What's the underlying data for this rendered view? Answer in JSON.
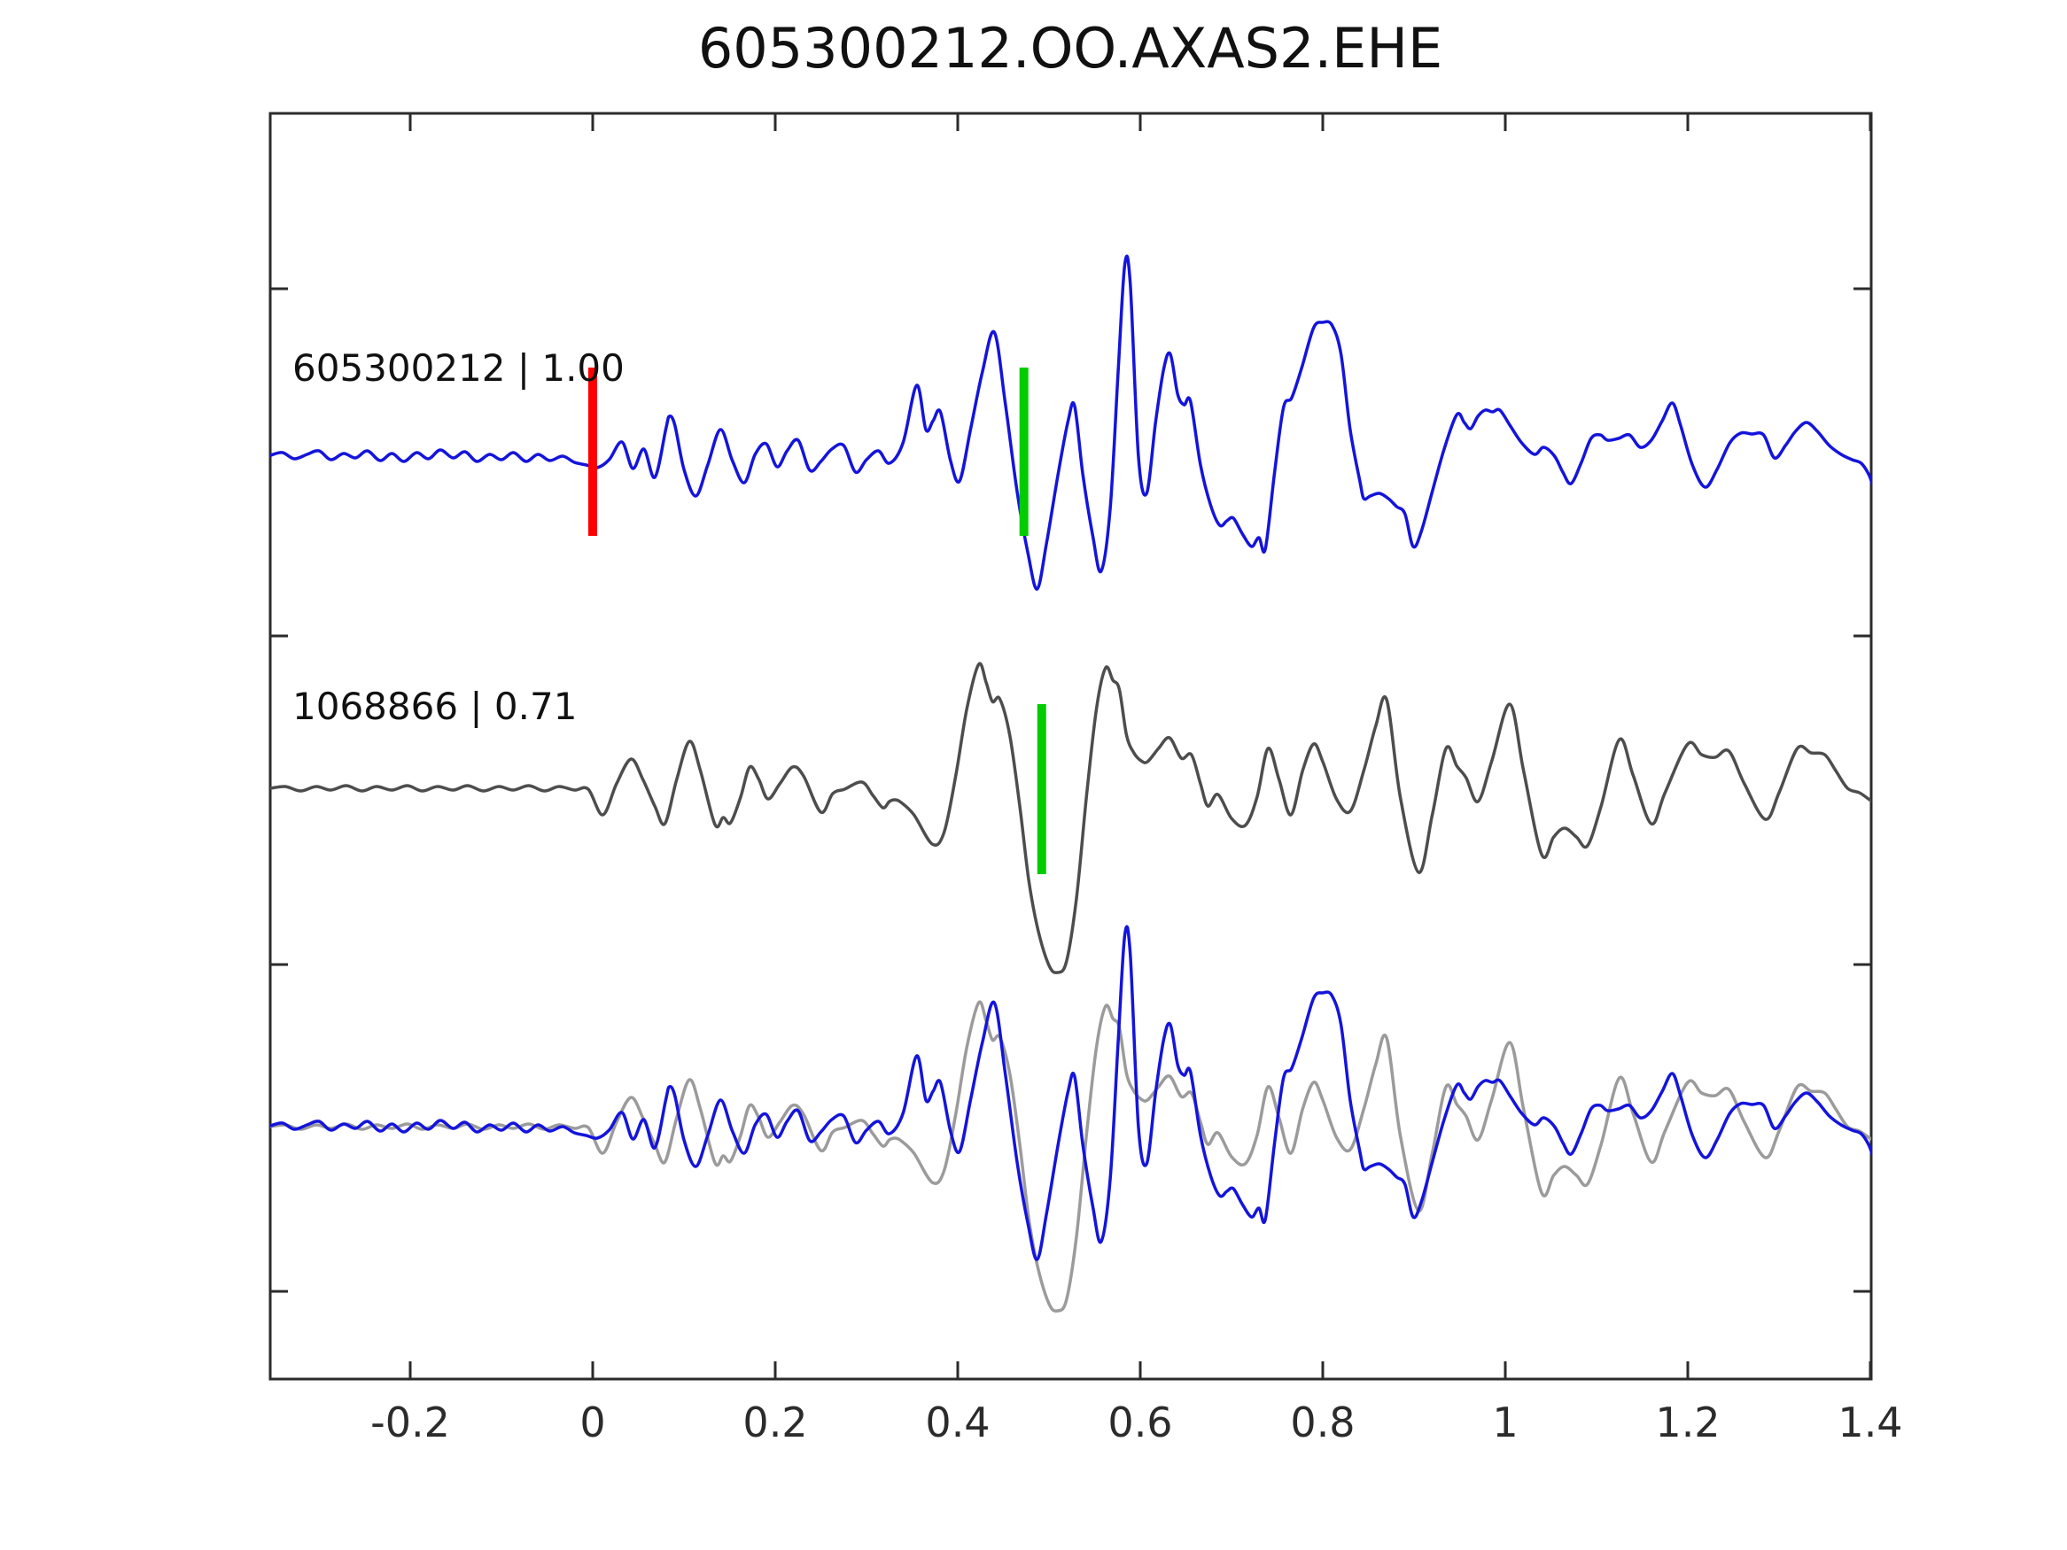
{
  "title": "605300212.OO.AXAS2.EHE",
  "chart_data": {
    "type": "line",
    "title": "605300212.OO.AXAS2.EHE",
    "xlabel": "",
    "ylabel": "",
    "grid": false,
    "legend": "none",
    "x_axis": {
      "range": [
        -0.353,
        1.4
      ],
      "ticks": [
        -0.2,
        0,
        0.2,
        0.4,
        0.6,
        0.8,
        1,
        1.2,
        1.4
      ],
      "labels": [
        "-0.2",
        "0",
        "0.2",
        "0.4",
        "0.6",
        "0.8",
        "1",
        "1.2",
        "1.4"
      ]
    },
    "colors": {
      "template_blue": "#1414dc",
      "detection_gray": "#4d4d4d",
      "overlay_gray": "#9b9b9b",
      "pick_red": "#ff0000",
      "pick_green": "#00cc00",
      "axis": "#2b2b2b"
    },
    "correlation_values": {
      "template": "1.00",
      "detection": "0.71"
    },
    "traces": {
      "template": {
        "id": "605300212",
        "amplitude_units": "px_up_from_baseline",
        "points": [
          [
            -0.353,
            1
          ],
          [
            -0.34,
            4
          ],
          [
            -0.327,
            -3
          ],
          [
            -0.313,
            2
          ],
          [
            -0.3,
            6
          ],
          [
            -0.287,
            -4
          ],
          [
            -0.273,
            3
          ],
          [
            -0.26,
            -2
          ],
          [
            -0.247,
            6
          ],
          [
            -0.233,
            -5
          ],
          [
            -0.22,
            3
          ],
          [
            -0.207,
            -6
          ],
          [
            -0.193,
            4
          ],
          [
            -0.18,
            -3
          ],
          [
            -0.167,
            7
          ],
          [
            -0.153,
            -2
          ],
          [
            -0.14,
            5
          ],
          [
            -0.127,
            -6
          ],
          [
            -0.113,
            2
          ],
          [
            -0.1,
            -4
          ],
          [
            -0.087,
            4
          ],
          [
            -0.073,
            -6
          ],
          [
            -0.06,
            2
          ],
          [
            -0.047,
            -5
          ],
          [
            -0.033,
            0
          ],
          [
            -0.02,
            -7
          ],
          [
            -0.007,
            -10
          ],
          [
            0.005,
            -13
          ],
          [
            0.018,
            -4
          ],
          [
            0.032,
            16
          ],
          [
            0.044,
            -14
          ],
          [
            0.056,
            8
          ],
          [
            0.068,
            -24
          ],
          [
            0.08,
            30
          ],
          [
            0.084,
            45
          ],
          [
            0.09,
            35
          ],
          [
            0.1,
            -15
          ],
          [
            0.113,
            -45
          ],
          [
            0.126,
            -10
          ],
          [
            0.14,
            30
          ],
          [
            0.153,
            -5
          ],
          [
            0.166,
            -30
          ],
          [
            0.178,
            2
          ],
          [
            0.19,
            14
          ],
          [
            0.202,
            -12
          ],
          [
            0.213,
            6
          ],
          [
            0.225,
            18
          ],
          [
            0.238,
            -16
          ],
          [
            0.25,
            -6
          ],
          [
            0.262,
            8
          ],
          [
            0.275,
            12
          ],
          [
            0.288,
            -18
          ],
          [
            0.3,
            -4
          ],
          [
            0.313,
            6
          ],
          [
            0.325,
            -8
          ],
          [
            0.34,
            15
          ],
          [
            0.355,
            80
          ],
          [
            0.365,
            30
          ],
          [
            0.373,
            40
          ],
          [
            0.381,
            50
          ],
          [
            0.392,
            -5
          ],
          [
            0.402,
            -28
          ],
          [
            0.414,
            30
          ],
          [
            0.427,
            95
          ],
          [
            0.44,
            140
          ],
          [
            0.452,
            60
          ],
          [
            0.465,
            -40
          ],
          [
            0.477,
            -110
          ],
          [
            0.487,
            -150
          ],
          [
            0.497,
            -100
          ],
          [
            0.51,
            -20
          ],
          [
            0.521,
            40
          ],
          [
            0.528,
            57
          ],
          [
            0.537,
            -20
          ],
          [
            0.548,
            -90
          ],
          [
            0.557,
            -130
          ],
          [
            0.567,
            -60
          ],
          [
            0.576,
            100
          ],
          [
            0.583,
            216
          ],
          [
            0.589,
            195
          ],
          [
            0.598,
            0
          ],
          [
            0.607,
            -42
          ],
          [
            0.617,
            40
          ],
          [
            0.626,
            100
          ],
          [
            0.633,
            115
          ],
          [
            0.641,
            70
          ],
          [
            0.648,
            58
          ],
          [
            0.655,
            62
          ],
          [
            0.666,
            -10
          ],
          [
            0.677,
            -55
          ],
          [
            0.687,
            -78
          ],
          [
            0.695,
            -73
          ],
          [
            0.702,
            -70
          ],
          [
            0.712,
            -88
          ],
          [
            0.722,
            -102
          ],
          [
            0.73,
            -92
          ],
          [
            0.737,
            -105
          ],
          [
            0.747,
            -20
          ],
          [
            0.757,
            55
          ],
          [
            0.766,
            66
          ],
          [
            0.777,
            100
          ],
          [
            0.79,
            145
          ],
          [
            0.8,
            151
          ],
          [
            0.81,
            148
          ],
          [
            0.82,
            115
          ],
          [
            0.83,
            30
          ],
          [
            0.841,
            -30
          ],
          [
            0.845,
            -48
          ],
          [
            0.852,
            -45
          ],
          [
            0.862,
            -42
          ],
          [
            0.872,
            -48
          ],
          [
            0.881,
            -57
          ],
          [
            0.89,
            -65
          ],
          [
            0.899,
            -102
          ],
          [
            0.908,
            -85
          ],
          [
            0.92,
            -40
          ],
          [
            0.933,
            8
          ],
          [
            0.947,
            47
          ],
          [
            0.955,
            38
          ],
          [
            0.962,
            31
          ],
          [
            0.97,
            45
          ],
          [
            0.978,
            52
          ],
          [
            0.986,
            50
          ],
          [
            0.994,
            52
          ],
          [
            1.005,
            35
          ],
          [
            1.018,
            15
          ],
          [
            1.032,
            2
          ],
          [
            1.042,
            10
          ],
          [
            1.054,
            0
          ],
          [
            1.063,
            -18
          ],
          [
            1.072,
            -31
          ],
          [
            1.083,
            -8
          ],
          [
            1.094,
            20
          ],
          [
            1.104,
            24
          ],
          [
            1.112,
            18
          ],
          [
            1.124,
            20
          ],
          [
            1.136,
            24
          ],
          [
            1.148,
            10
          ],
          [
            1.16,
            18
          ],
          [
            1.172,
            40
          ],
          [
            1.183,
            60
          ],
          [
            1.192,
            35
          ],
          [
            1.205,
            -10
          ],
          [
            1.219,
            -35
          ],
          [
            1.232,
            -15
          ],
          [
            1.246,
            15
          ],
          [
            1.258,
            26
          ],
          [
            1.27,
            25
          ],
          [
            1.283,
            24
          ],
          [
            1.295,
            -2
          ],
          [
            1.307,
            12
          ],
          [
            1.318,
            28
          ],
          [
            1.33,
            38
          ],
          [
            1.342,
            28
          ],
          [
            1.355,
            12
          ],
          [
            1.368,
            2
          ],
          [
            1.38,
            -4
          ],
          [
            1.39,
            -8
          ],
          [
            1.398,
            -20
          ],
          [
            1.403,
            -34
          ]
        ]
      },
      "detection": {
        "id": "1068866",
        "amplitude_units": "px_up_from_baseline",
        "points": [
          [
            -0.353,
            0
          ],
          [
            -0.337,
            2
          ],
          [
            -0.32,
            -3
          ],
          [
            -0.303,
            2
          ],
          [
            -0.287,
            -2
          ],
          [
            -0.27,
            3
          ],
          [
            -0.253,
            -3
          ],
          [
            -0.237,
            2
          ],
          [
            -0.22,
            -2
          ],
          [
            -0.203,
            3
          ],
          [
            -0.187,
            -3
          ],
          [
            -0.17,
            2
          ],
          [
            -0.153,
            -2
          ],
          [
            -0.137,
            3
          ],
          [
            -0.12,
            -3
          ],
          [
            -0.103,
            2
          ],
          [
            -0.087,
            -2
          ],
          [
            -0.07,
            3
          ],
          [
            -0.053,
            -3
          ],
          [
            -0.037,
            2
          ],
          [
            -0.02,
            -2
          ],
          [
            -0.005,
            -1
          ],
          [
            0.011,
            -30
          ],
          [
            0.026,
            5
          ],
          [
            0.042,
            33
          ],
          [
            0.055,
            10
          ],
          [
            0.068,
            -20
          ],
          [
            0.079,
            -40
          ],
          [
            0.092,
            10
          ],
          [
            0.106,
            53
          ],
          [
            0.118,
            20
          ],
          [
            0.134,
            -41
          ],
          [
            0.143,
            -33
          ],
          [
            0.151,
            -39
          ],
          [
            0.162,
            -10
          ],
          [
            0.172,
            24
          ],
          [
            0.182,
            10
          ],
          [
            0.192,
            -12
          ],
          [
            0.205,
            5
          ],
          [
            0.219,
            24
          ],
          [
            0.231,
            14
          ],
          [
            0.25,
            -27
          ],
          [
            0.263,
            -6
          ],
          [
            0.276,
            -1
          ],
          [
            0.295,
            7
          ],
          [
            0.307,
            -8
          ],
          [
            0.318,
            -22
          ],
          [
            0.325,
            -15
          ],
          [
            0.331,
            -13
          ],
          [
            0.338,
            -16
          ],
          [
            0.352,
            -30
          ],
          [
            0.372,
            -63
          ],
          [
            0.385,
            -50
          ],
          [
            0.398,
            15
          ],
          [
            0.41,
            90
          ],
          [
            0.423,
            140
          ],
          [
            0.431,
            120
          ],
          [
            0.438,
            98
          ],
          [
            0.446,
            101
          ],
          [
            0.457,
            60
          ],
          [
            0.468,
            -20
          ],
          [
            0.478,
            -105
          ],
          [
            0.488,
            -160
          ],
          [
            0.5,
            -200
          ],
          [
            0.509,
            -208
          ],
          [
            0.519,
            -196
          ],
          [
            0.53,
            -125
          ],
          [
            0.541,
            -10
          ],
          [
            0.552,
            90
          ],
          [
            0.562,
            136
          ],
          [
            0.57,
            122
          ],
          [
            0.577,
            112
          ],
          [
            0.585,
            60
          ],
          [
            0.593,
            40
          ],
          [
            0.601,
            31
          ],
          [
            0.608,
            30
          ],
          [
            0.62,
            45
          ],
          [
            0.632,
            57
          ],
          [
            0.645,
            34
          ],
          [
            0.656,
            38
          ],
          [
            0.666,
            5
          ],
          [
            0.674,
            -20
          ],
          [
            0.685,
            -7
          ],
          [
            0.7,
            -34
          ],
          [
            0.715,
            -42
          ],
          [
            0.728,
            -10
          ],
          [
            0.74,
            45
          ],
          [
            0.752,
            10
          ],
          [
            0.765,
            -30
          ],
          [
            0.778,
            20
          ],
          [
            0.79,
            50
          ],
          [
            0.8,
            30
          ],
          [
            0.815,
            -12
          ],
          [
            0.83,
            -26
          ],
          [
            0.845,
            20
          ],
          [
            0.858,
            70
          ],
          [
            0.87,
            100
          ],
          [
            0.885,
            -10
          ],
          [
            0.905,
            -95
          ],
          [
            0.92,
            -30
          ],
          [
            0.935,
            45
          ],
          [
            0.947,
            25
          ],
          [
            0.957,
            12
          ],
          [
            0.97,
            -15
          ],
          [
            0.985,
            30
          ],
          [
            1.005,
            95
          ],
          [
            1.02,
            20
          ],
          [
            1.04,
            -75
          ],
          [
            1.053,
            -55
          ],
          [
            1.065,
            -45
          ],
          [
            1.078,
            -55
          ],
          [
            1.09,
            -65
          ],
          [
            1.105,
            -20
          ],
          [
            1.125,
            55
          ],
          [
            1.14,
            15
          ],
          [
            1.16,
            -40
          ],
          [
            1.175,
            -5
          ],
          [
            1.2,
            50
          ],
          [
            1.215,
            38
          ],
          [
            1.23,
            35
          ],
          [
            1.245,
            42
          ],
          [
            1.262,
            5
          ],
          [
            1.285,
            -35
          ],
          [
            1.3,
            -5
          ],
          [
            1.32,
            45
          ],
          [
            1.335,
            40
          ],
          [
            1.35,
            38
          ],
          [
            1.362,
            20
          ],
          [
            1.375,
            0
          ],
          [
            1.388,
            -5
          ],
          [
            1.398,
            -12
          ],
          [
            1.403,
            -15
          ]
        ]
      }
    },
    "rows": [
      {
        "label": "605300212 | 1.00",
        "series": [
          {
            "trace": "template",
            "color": "#1414dc"
          }
        ],
        "picks": [
          {
            "x": 0.0,
            "color": "#ff0000",
            "kind": "origin-pick"
          },
          {
            "x": 0.4725,
            "color": "#00cc00",
            "kind": "phase-pick"
          }
        ]
      },
      {
        "label": "1068866 | 0.71",
        "series": [
          {
            "trace": "detection",
            "color": "#4d4d4d"
          }
        ],
        "picks": [
          {
            "x": 0.492,
            "color": "#00cc00",
            "kind": "phase-pick"
          }
        ]
      },
      {
        "label": "",
        "series": [
          {
            "trace": "detection",
            "color": "#9b9b9b"
          },
          {
            "trace": "template",
            "color": "#1414dc"
          }
        ],
        "picks": []
      }
    ]
  }
}
